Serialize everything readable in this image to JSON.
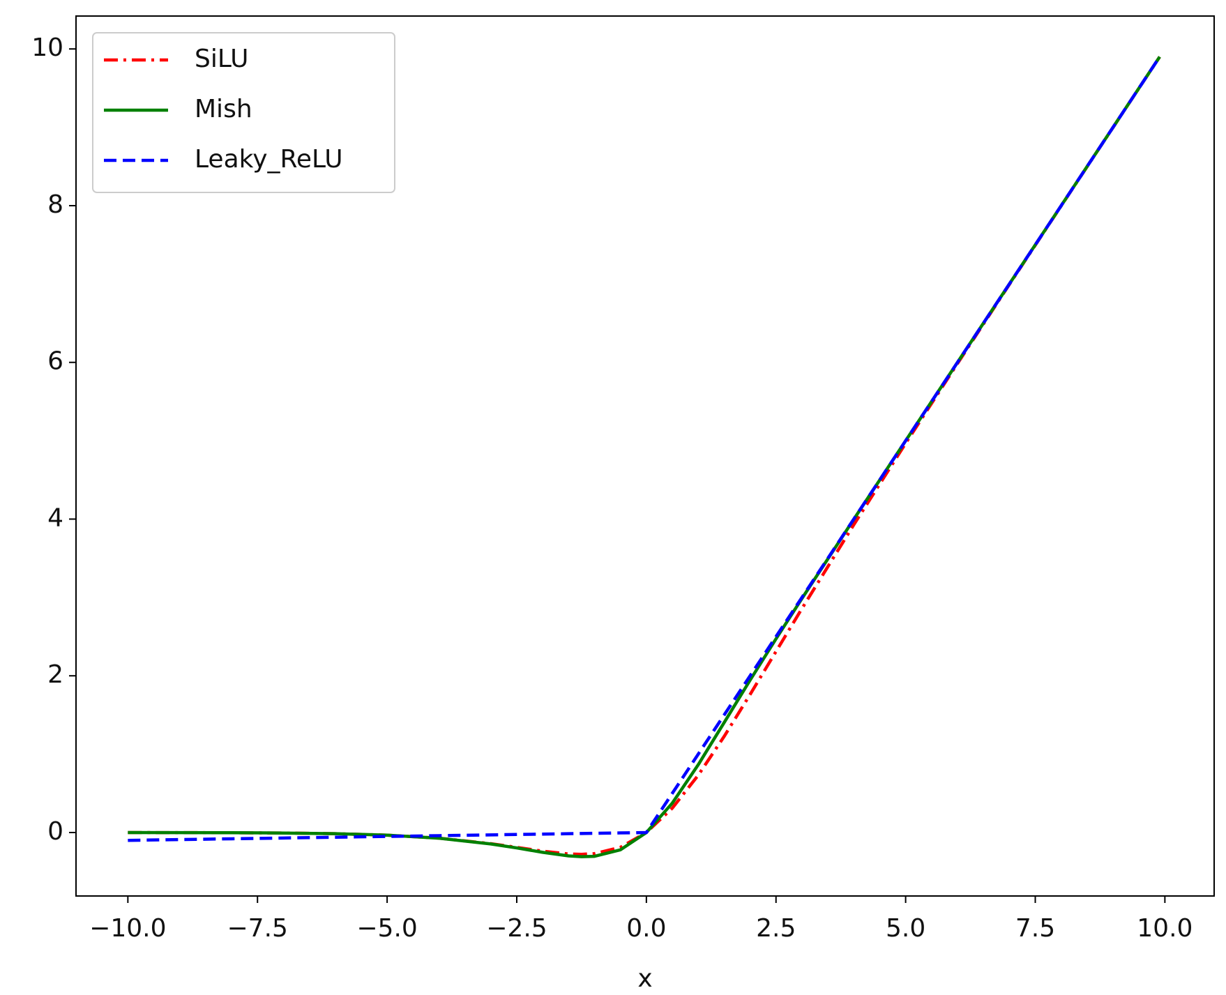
{
  "chart_data": {
    "type": "line",
    "x_label": "x",
    "x": [
      -10,
      -9,
      -8,
      -7,
      -6,
      -5,
      -4,
      -3,
      -2.5,
      -2,
      -1.5,
      -1.25,
      -1,
      -0.5,
      0,
      0.5,
      1,
      1.5,
      2,
      2.5,
      3,
      4,
      5,
      6,
      7,
      8,
      9,
      9.9
    ],
    "series": [
      {
        "name": "SiLU",
        "color": "#ff0000",
        "linestyle": "dashdot",
        "values": [
          -0.0005,
          -0.0011,
          -0.0027,
          -0.0064,
          -0.0148,
          -0.0335,
          -0.0719,
          -0.1423,
          -0.1896,
          -0.2384,
          -0.2736,
          -0.278,
          -0.2689,
          -0.1888,
          0,
          0.3112,
          0.7311,
          1.2264,
          1.7616,
          2.3104,
          2.8577,
          3.9281,
          4.9665,
          5.9852,
          6.9936,
          7.9973,
          8.9989,
          9.8995
        ]
      },
      {
        "name": "Mish",
        "color": "#008000",
        "linestyle": "solid",
        "values": [
          -0.0005,
          -0.0011,
          -0.0027,
          -0.0064,
          -0.0149,
          -0.0336,
          -0.0727,
          -0.1456,
          -0.1967,
          -0.2525,
          -0.2981,
          -0.3085,
          -0.3034,
          -0.2209,
          0,
          0.3752,
          0.8651,
          1.4033,
          1.944,
          2.4714,
          2.9865,
          3.9974,
          4.9996,
          6,
          7,
          8,
          9,
          9.9
        ]
      },
      {
        "name": "Leaky_ReLU",
        "color": "#0000ff",
        "linestyle": "dashed",
        "values": [
          -0.1,
          -0.09,
          -0.08,
          -0.07,
          -0.06,
          -0.05,
          -0.04,
          -0.03,
          -0.025,
          -0.02,
          -0.015,
          -0.0125,
          -0.01,
          -0.005,
          0,
          0.5,
          1,
          1.5,
          2,
          2.5,
          3,
          4,
          5,
          6,
          7,
          8,
          9,
          9.9
        ]
      }
    ],
    "xlim": [
      -11,
      10.95
    ],
    "ylim": [
      -0.81,
      10.42
    ],
    "xticks": [
      {
        "value": -10,
        "label": "−10.0"
      },
      {
        "value": -7.5,
        "label": "−7.5"
      },
      {
        "value": -5,
        "label": "−5.0"
      },
      {
        "value": -2.5,
        "label": "−2.5"
      },
      {
        "value": 0,
        "label": "0.0"
      },
      {
        "value": 2.5,
        "label": "2.5"
      },
      {
        "value": 5,
        "label": "5.0"
      },
      {
        "value": 7.5,
        "label": "7.5"
      },
      {
        "value": 10,
        "label": "10.0"
      }
    ],
    "yticks": [
      0,
      2,
      4,
      6,
      8,
      10
    ],
    "legend": "upper left",
    "grid": false
  }
}
